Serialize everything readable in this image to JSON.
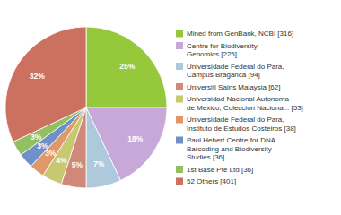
{
  "chart_data": {
    "type": "pie",
    "categories": [
      "Mined from GenBank, NCBI [316]",
      "Centre for Biodiversity\nGenomics [225]",
      "Universidade Federal do Para,\nCampus Braganca [94]",
      "Universiti Sains Malaysia [62]",
      "Universidad Nacional Autonoma\nde Mexico, Coleccion Naciona... [53]",
      "Universidade Federal do Para,\nInstituto de Estudos Costeiros [38]",
      "Paul Hebert Centre for DNA\nBarcoding and Biodiversity\nStudies [36]",
      "1st Base Pte Ltd [36]",
      "52 Others [401]"
    ],
    "values": [
      25,
      18,
      7,
      5,
      4,
      3,
      3,
      3,
      32
    ],
    "value_labels": [
      "25%",
      "18%",
      "7%",
      "5%",
      "4%",
      "3%",
      "3%",
      "3%",
      "32%"
    ],
    "colors": [
      "#96c83c",
      "#c8a8d8",
      "#aec8dc",
      "#d08878",
      "#c8c870",
      "#e09868",
      "#7090c8",
      "#90c060",
      "#cc7060"
    ],
    "data_labels": true,
    "legend": "right"
  }
}
